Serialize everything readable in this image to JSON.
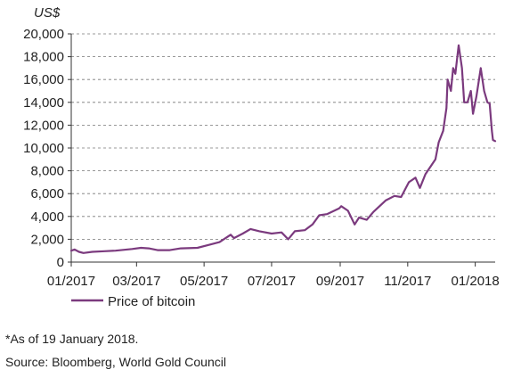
{
  "chart_data": {
    "type": "line",
    "ylabel": "US$",
    "ylim": [
      0,
      20000
    ],
    "yticks": [
      "0",
      "2,000",
      "4,000",
      "6,000",
      "8,000",
      "10,000",
      "12,000",
      "14,000",
      "16,000",
      "18,000",
      "20,000"
    ],
    "xlim": [
      "2017-01-01",
      "2018-01-19"
    ],
    "xticks": [
      "01/2017",
      "03/2017",
      "05/2017",
      "07/2017",
      "09/2017",
      "11/2017",
      "01/2018"
    ],
    "xtick_dates": [
      "2017-01-01",
      "2017-03-01",
      "2017-05-01",
      "2017-07-01",
      "2017-09-01",
      "2017-11-01",
      "2018-01-01"
    ],
    "grid": "horizontal dashed",
    "legend_position": "bottom-left",
    "series": [
      {
        "name": "Price of bitcoin",
        "color": "#7B3A7E",
        "points": [
          [
            "2017-01-01",
            1000
          ],
          [
            "2017-01-04",
            1100
          ],
          [
            "2017-01-08",
            900
          ],
          [
            "2017-01-12",
            800
          ],
          [
            "2017-01-20",
            900
          ],
          [
            "2017-01-31",
            950
          ],
          [
            "2017-02-10",
            1000
          ],
          [
            "2017-02-25",
            1150
          ],
          [
            "2017-03-05",
            1250
          ],
          [
            "2017-03-12",
            1200
          ],
          [
            "2017-03-20",
            1050
          ],
          [
            "2017-03-31",
            1050
          ],
          [
            "2017-04-10",
            1200
          ],
          [
            "2017-04-25",
            1250
          ],
          [
            "2017-05-05",
            1500
          ],
          [
            "2017-05-15",
            1750
          ],
          [
            "2017-05-25",
            2400
          ],
          [
            "2017-05-28",
            2100
          ],
          [
            "2017-06-05",
            2500
          ],
          [
            "2017-06-12",
            2900
          ],
          [
            "2017-06-20",
            2700
          ],
          [
            "2017-07-01",
            2500
          ],
          [
            "2017-07-10",
            2600
          ],
          [
            "2017-07-16",
            2000
          ],
          [
            "2017-07-22",
            2700
          ],
          [
            "2017-07-31",
            2800
          ],
          [
            "2017-08-07",
            3300
          ],
          [
            "2017-08-13",
            4100
          ],
          [
            "2017-08-20",
            4200
          ],
          [
            "2017-08-31",
            4700
          ],
          [
            "2017-09-02",
            4900
          ],
          [
            "2017-09-08",
            4500
          ],
          [
            "2017-09-14",
            3300
          ],
          [
            "2017-09-18",
            3900
          ],
          [
            "2017-09-25",
            3700
          ],
          [
            "2017-10-01",
            4400
          ],
          [
            "2017-10-12",
            5400
          ],
          [
            "2017-10-20",
            5800
          ],
          [
            "2017-10-26",
            5700
          ],
          [
            "2017-11-02",
            7000
          ],
          [
            "2017-11-08",
            7400
          ],
          [
            "2017-11-12",
            6500
          ],
          [
            "2017-11-17",
            7700
          ],
          [
            "2017-11-26",
            9000
          ],
          [
            "2017-11-29",
            10500
          ],
          [
            "2017-12-03",
            11500
          ],
          [
            "2017-12-06",
            13500
          ],
          [
            "2017-12-07",
            16000
          ],
          [
            "2017-12-10",
            15000
          ],
          [
            "2017-12-12",
            17000
          ],
          [
            "2017-12-14",
            16500
          ],
          [
            "2017-12-17",
            19000
          ],
          [
            "2017-12-20",
            17000
          ],
          [
            "2017-12-22",
            14000
          ],
          [
            "2017-12-25",
            14000
          ],
          [
            "2017-12-28",
            15000
          ],
          [
            "2017-12-30",
            13000
          ],
          [
            "2018-01-02",
            14500
          ],
          [
            "2018-01-06",
            17000
          ],
          [
            "2018-01-09",
            15000
          ],
          [
            "2018-01-12",
            14000
          ],
          [
            "2018-01-14",
            13900
          ],
          [
            "2018-01-16",
            11500
          ],
          [
            "2018-01-17",
            10700
          ],
          [
            "2018-01-19",
            10600
          ]
        ]
      }
    ]
  },
  "footnote": "*As of 19 January 2018.",
  "source": "Source: Bloomberg, World Gold Council"
}
